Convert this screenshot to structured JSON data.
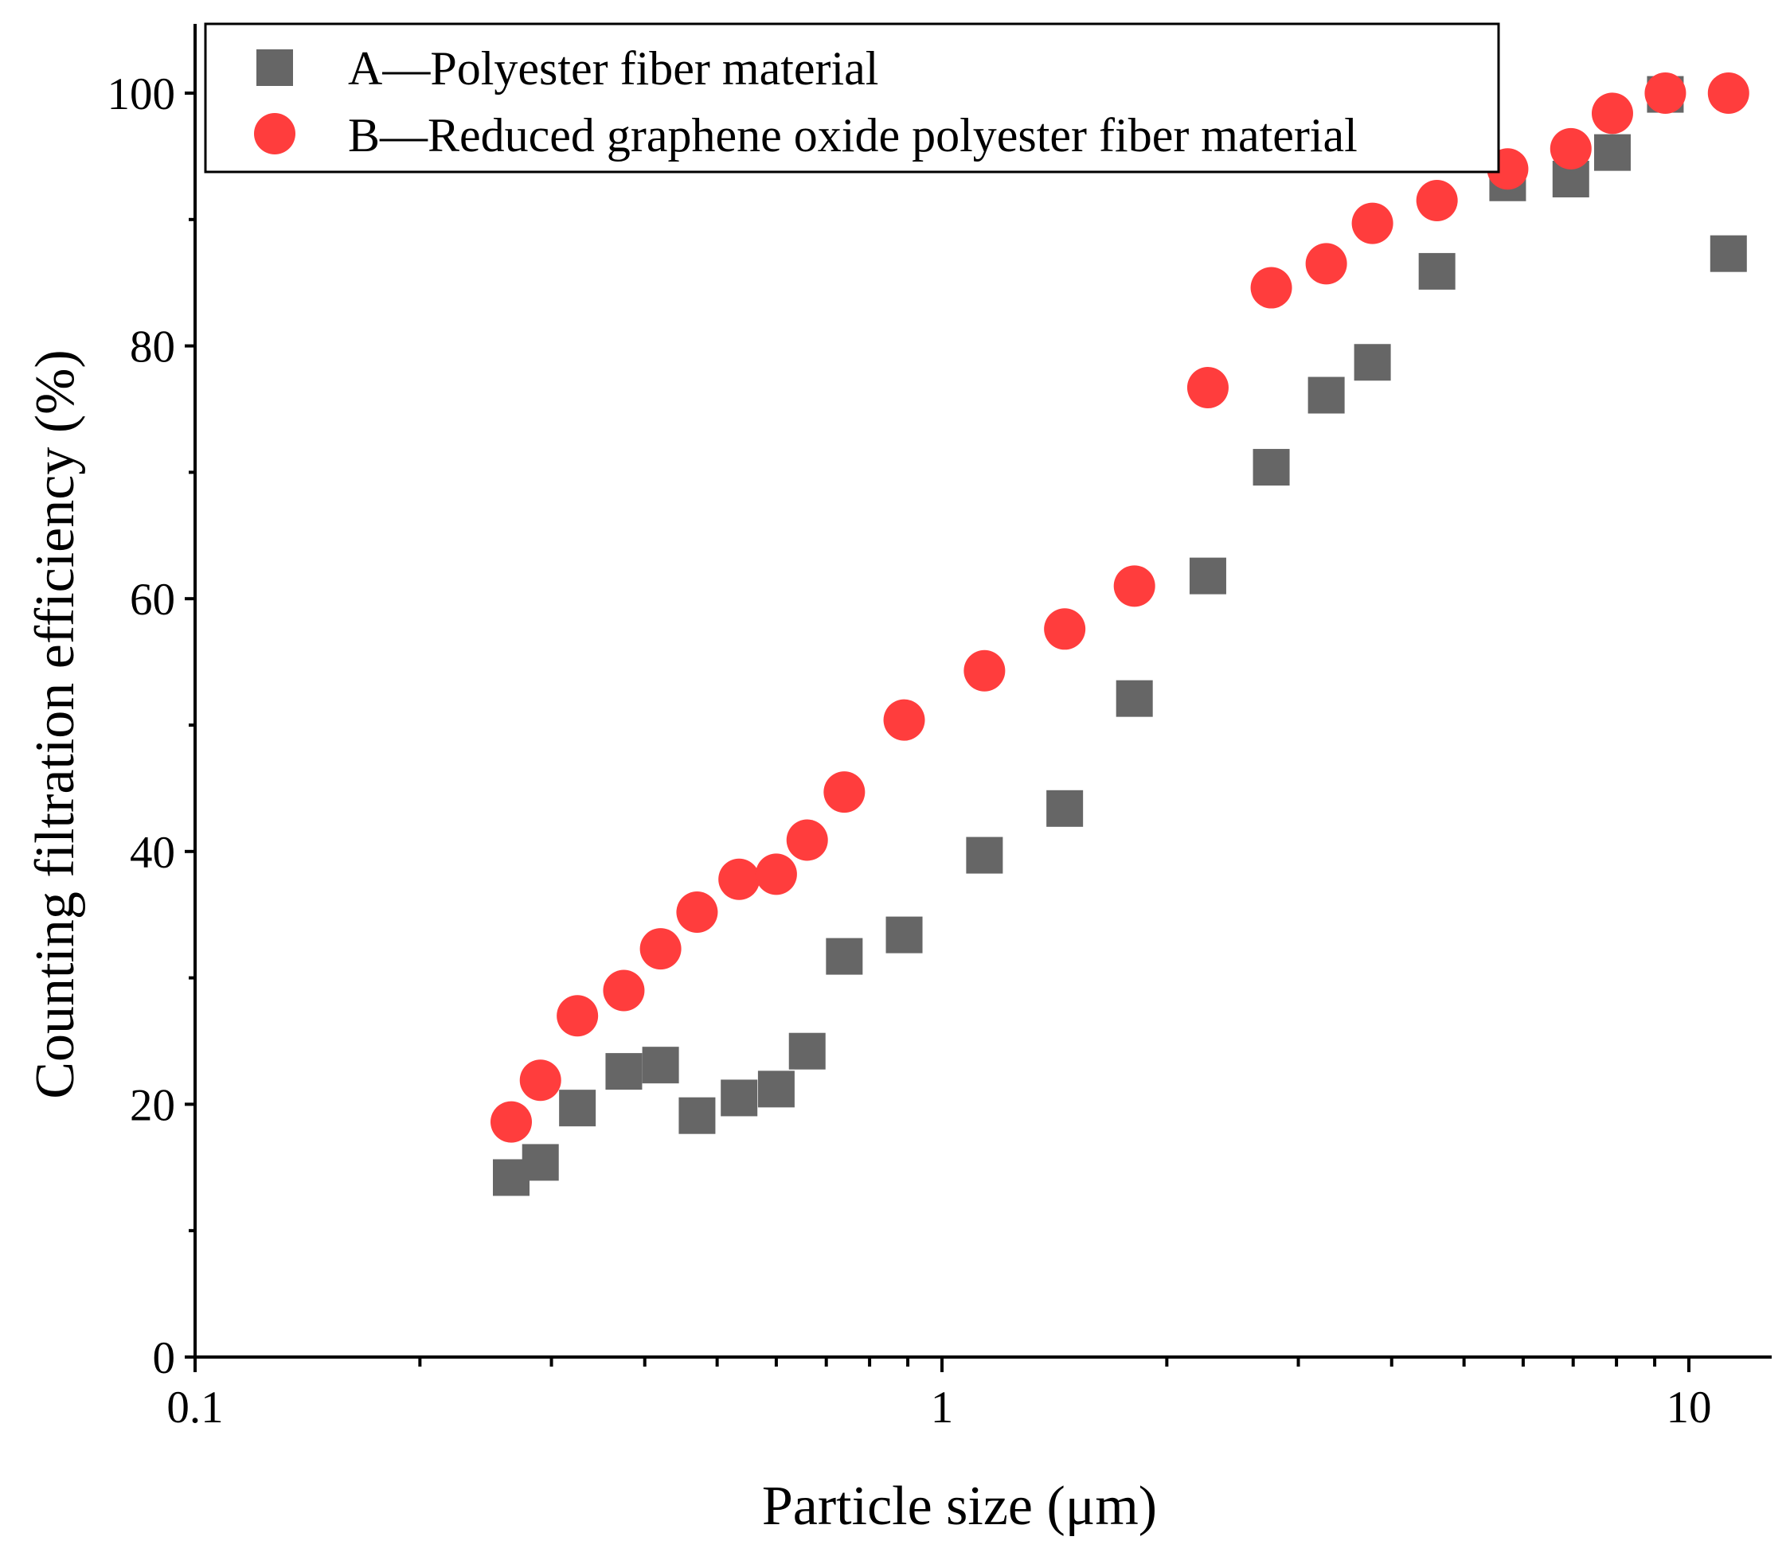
{
  "chart_data": {
    "type": "scatter",
    "xlabel": "Particle size (μm)",
    "ylabel": "Counting filtration efficiency (%)",
    "xscale": "log",
    "xlim": [
      0.1,
      12.5
    ],
    "ylim": [
      0,
      105
    ],
    "xticks": [
      "0.1",
      "1",
      "10"
    ],
    "yticks": [
      "0",
      "20",
      "40",
      "60",
      "80",
      "100"
    ],
    "grid": false,
    "legend_position": "top-left",
    "series": [
      {
        "name": "A—Polyester fiber material",
        "marker": "square",
        "color": "#666666",
        "x": [
          0.265,
          0.29,
          0.325,
          0.375,
          0.42,
          0.47,
          0.535,
          0.6,
          0.66,
          0.74,
          0.89,
          1.14,
          1.46,
          1.81,
          2.27,
          2.76,
          3.27,
          3.77,
          4.6,
          5.72,
          6.95,
          7.9,
          9.3,
          11.3
        ],
        "y": [
          14.2,
          15.4,
          19.7,
          22.6,
          23.1,
          19.1,
          20.5,
          21.2,
          24.2,
          31.7,
          33.4,
          39.7,
          43.4,
          52.1,
          61.8,
          70.4,
          76.1,
          78.7,
          85.9,
          92.9,
          93.2,
          95.3,
          99.9,
          87.3
        ]
      },
      {
        "name": "B—Reduced graphene oxide polyester fiber material",
        "marker": "circle",
        "color": "#ff3d3d",
        "x": [
          0.265,
          0.29,
          0.325,
          0.375,
          0.42,
          0.47,
          0.535,
          0.6,
          0.66,
          0.74,
          0.89,
          1.14,
          1.46,
          1.81,
          2.27,
          2.76,
          3.27,
          3.77,
          4.6,
          5.72,
          6.95,
          7.9,
          9.3,
          11.3
        ],
        "y": [
          18.6,
          21.9,
          27.0,
          29.0,
          32.3,
          35.2,
          37.8,
          38.2,
          40.9,
          44.7,
          50.4,
          54.3,
          57.6,
          61.0,
          76.7,
          84.6,
          86.5,
          89.7,
          91.5,
          94.0,
          95.6,
          98.4,
          100.0,
          100.0
        ]
      }
    ]
  }
}
